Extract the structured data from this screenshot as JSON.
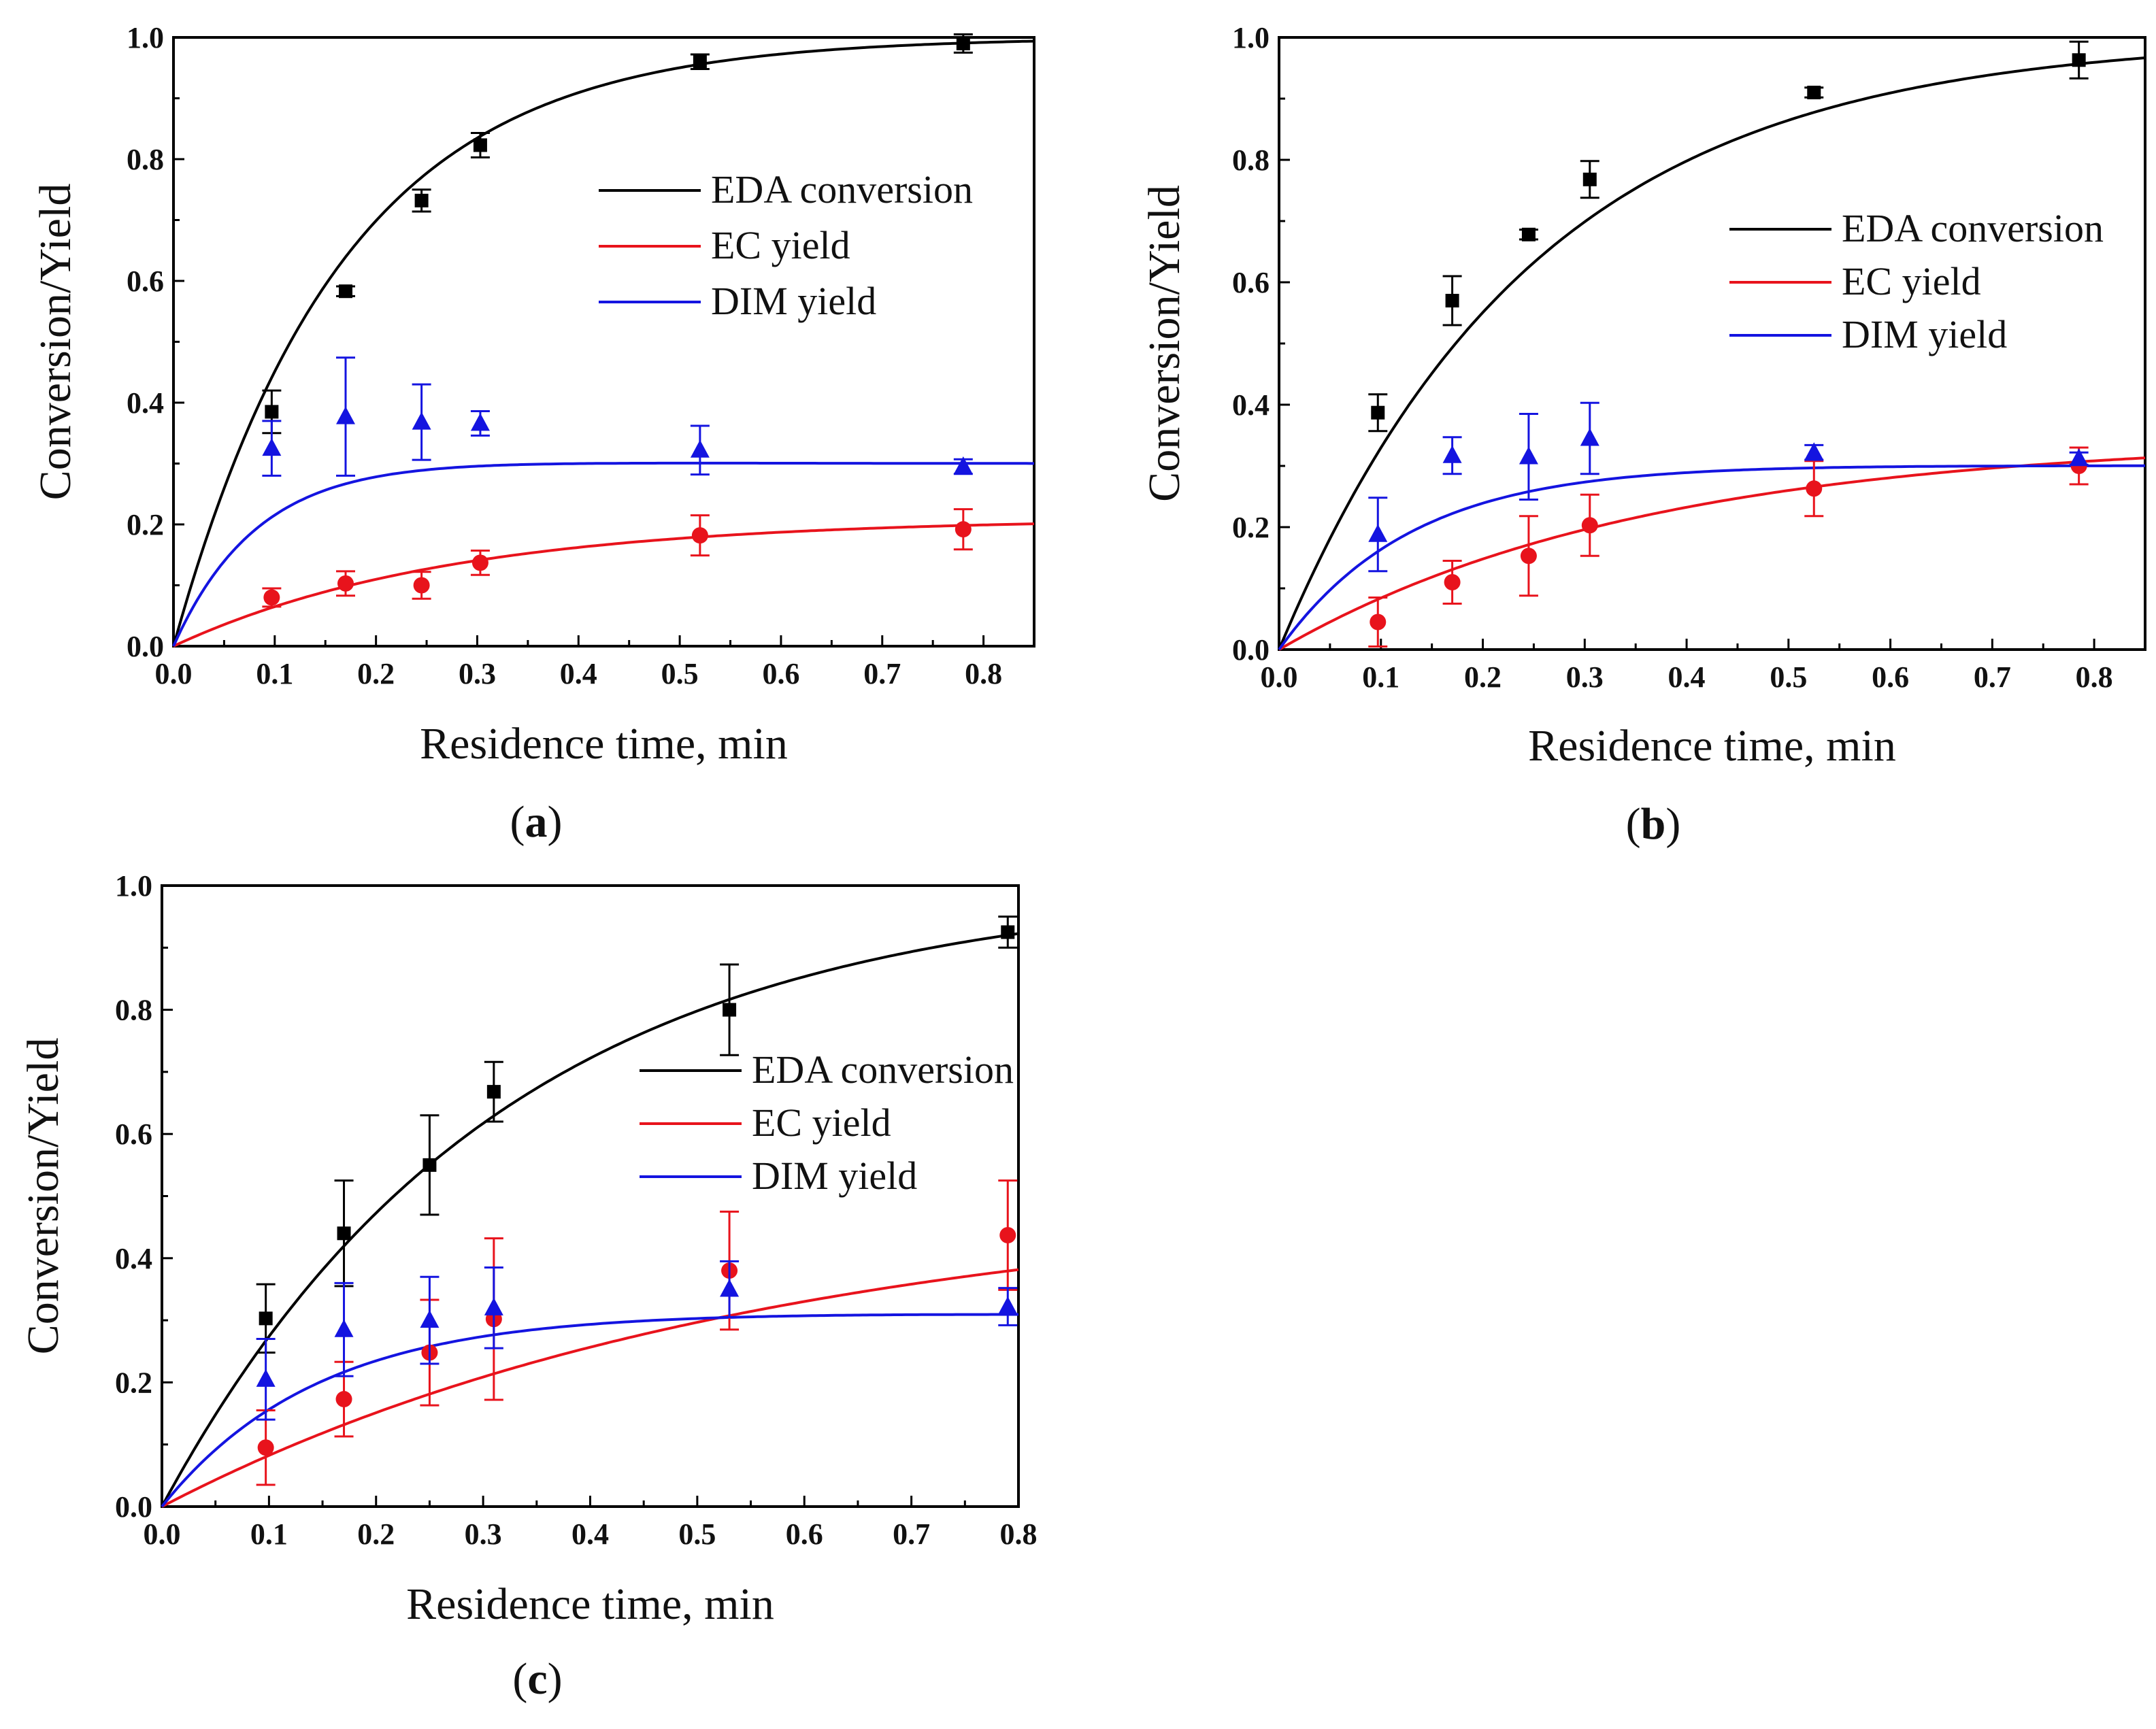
{
  "figure": {
    "panels": [
      {
        "id": "a",
        "label_open": "(",
        "label_letter": "a",
        "label_close": ")"
      },
      {
        "id": "b",
        "label_open": "(",
        "label_letter": "b",
        "label_close": ")"
      },
      {
        "id": "c",
        "label_open": "(",
        "label_letter": "c",
        "label_close": ")"
      }
    ]
  },
  "colors": {
    "eda": "#000000",
    "ec": "#e8131c",
    "dim": "#1414e0"
  },
  "chart_data": [
    {
      "id": "a",
      "type": "scatter",
      "xlabel": "Residence time, min",
      "ylabel": "Conversion/Yield",
      "xlim": [
        0.0,
        0.85
      ],
      "ylim": [
        0.0,
        1.0
      ],
      "xticks": [
        "0.0",
        "0.1",
        "0.2",
        "0.3",
        "0.4",
        "0.5",
        "0.6",
        "0.7",
        "0.8"
      ],
      "yticks": [
        "0.0",
        "0.2",
        "0.4",
        "0.6",
        "0.8",
        "1.0"
      ],
      "legend": [
        "EDA conversion",
        "EC yield",
        "DIM yield"
      ],
      "legend_position": "center-right",
      "series": [
        {
          "name": "EDA conversion",
          "marker": "square",
          "x": [
            0.097,
            0.17,
            0.245,
            0.303,
            0.52,
            0.78
          ],
          "y": [
            0.385,
            0.583,
            0.732,
            0.823,
            0.96,
            0.99
          ],
          "err": [
            0.035,
            0.008,
            0.018,
            0.02,
            0.012,
            0.015
          ],
          "fit": {
            "k": 6.0
          }
        },
        {
          "name": "EC yield",
          "marker": "circle",
          "x": [
            0.097,
            0.17,
            0.245,
            0.303,
            0.52,
            0.78
          ],
          "y": [
            0.08,
            0.103,
            0.1,
            0.137,
            0.182,
            0.192
          ],
          "err": [
            0.015,
            0.02,
            0.022,
            0.02,
            0.033,
            0.033
          ],
          "fit": {
            "amp": 0.21,
            "k": 3.7
          }
        },
        {
          "name": "DIM yield",
          "marker": "triangle",
          "x": [
            0.097,
            0.17,
            0.245,
            0.303,
            0.52,
            0.78
          ],
          "y": [
            0.325,
            0.377,
            0.368,
            0.366,
            0.322,
            0.295
          ],
          "err": [
            0.045,
            0.097,
            0.062,
            0.02,
            0.04,
            0.012
          ],
          "fit": {
            "base": 0.3,
            "amp": 0.12,
            "k1": 12.0,
            "k2": 7.5
          }
        }
      ]
    },
    {
      "id": "b",
      "type": "scatter",
      "xlabel": "Residence time, min",
      "ylabel": "Conversion/Yield",
      "xlim": [
        0.0,
        0.85
      ],
      "ylim": [
        0.0,
        1.0
      ],
      "xticks": [
        "0.0",
        "0.1",
        "0.2",
        "0.3",
        "0.4",
        "0.5",
        "0.6",
        "0.7",
        "0.8"
      ],
      "yticks": [
        "0.0",
        "0.2",
        "0.4",
        "0.6",
        "0.8",
        "1.0"
      ],
      "legend": [
        "EDA conversion",
        "EC yield",
        "DIM yield"
      ],
      "legend_position": "center-right",
      "series": [
        {
          "name": "EDA conversion",
          "marker": "square",
          "x": [
            0.097,
            0.17,
            0.245,
            0.305,
            0.525,
            0.785
          ],
          "y": [
            0.387,
            0.57,
            0.678,
            0.768,
            0.91,
            0.963
          ],
          "err": [
            0.03,
            0.04,
            0.008,
            0.03,
            0.008,
            0.03
          ],
          "fit": {
            "k": 4.0
          }
        },
        {
          "name": "EC yield",
          "marker": "circle",
          "x": [
            0.097,
            0.17,
            0.245,
            0.305,
            0.525,
            0.785
          ],
          "y": [
            0.045,
            0.11,
            0.153,
            0.203,
            0.263,
            0.3
          ],
          "err": [
            0.04,
            0.035,
            0.065,
            0.05,
            0.045,
            0.03
          ],
          "fit": {
            "amp": 0.345,
            "k": 2.8
          }
        },
        {
          "name": "DIM yield",
          "marker": "triangle",
          "x": [
            0.097,
            0.17,
            0.245,
            0.305,
            0.525,
            0.785
          ],
          "y": [
            0.188,
            0.317,
            0.315,
            0.345,
            0.322,
            0.312
          ],
          "err": [
            0.06,
            0.03,
            0.07,
            0.058,
            0.012,
            0.01
          ],
          "fit": {
            "base": 0.3,
            "amp": 0.09,
            "k1": 7.5,
            "k2": 5.5
          }
        }
      ]
    },
    {
      "id": "c",
      "type": "scatter",
      "xlabel": "Residence time, min",
      "ylabel": "Conversion/Yield",
      "xlim": [
        0.0,
        0.8
      ],
      "ylim": [
        0.0,
        1.0
      ],
      "xticks": [
        "0.0",
        "0.1",
        "0.2",
        "0.3",
        "0.4",
        "0.5",
        "0.6",
        "0.7",
        "0.8"
      ],
      "yticks": [
        "0.0",
        "0.2",
        "0.4",
        "0.6",
        "0.8",
        "1.0"
      ],
      "legend": [
        "EDA conversion",
        "EC yield",
        "DIM yield"
      ],
      "legend_position": "center-right",
      "series": [
        {
          "name": "EDA conversion",
          "marker": "square",
          "x": [
            0.097,
            0.17,
            0.25,
            0.31,
            0.53,
            0.79
          ],
          "y": [
            0.303,
            0.44,
            0.55,
            0.668,
            0.8,
            0.925
          ],
          "err": [
            0.055,
            0.085,
            0.08,
            0.048,
            0.073,
            0.025
          ],
          "fit": {
            "k": 3.2
          }
        },
        {
          "name": "EC yield",
          "marker": "circle",
          "x": [
            0.097,
            0.17,
            0.25,
            0.31,
            0.53,
            0.79
          ],
          "y": [
            0.095,
            0.173,
            0.248,
            0.302,
            0.38,
            0.437
          ],
          "err": [
            0.06,
            0.06,
            0.085,
            0.13,
            0.095,
            0.088
          ],
          "fit": {
            "amp": 0.5,
            "k": 1.8
          }
        },
        {
          "name": "DIM yield",
          "marker": "triangle",
          "x": [
            0.097,
            0.17,
            0.25,
            0.31,
            0.53,
            0.79
          ],
          "y": [
            0.205,
            0.285,
            0.3,
            0.32,
            0.35,
            0.322
          ],
          "err": [
            0.065,
            0.075,
            0.07,
            0.065,
            0.045,
            0.03
          ],
          "fit": {
            "base": 0.3,
            "amp": 0.065,
            "k1": 7.0,
            "k2": 2.0
          }
        }
      ]
    }
  ]
}
